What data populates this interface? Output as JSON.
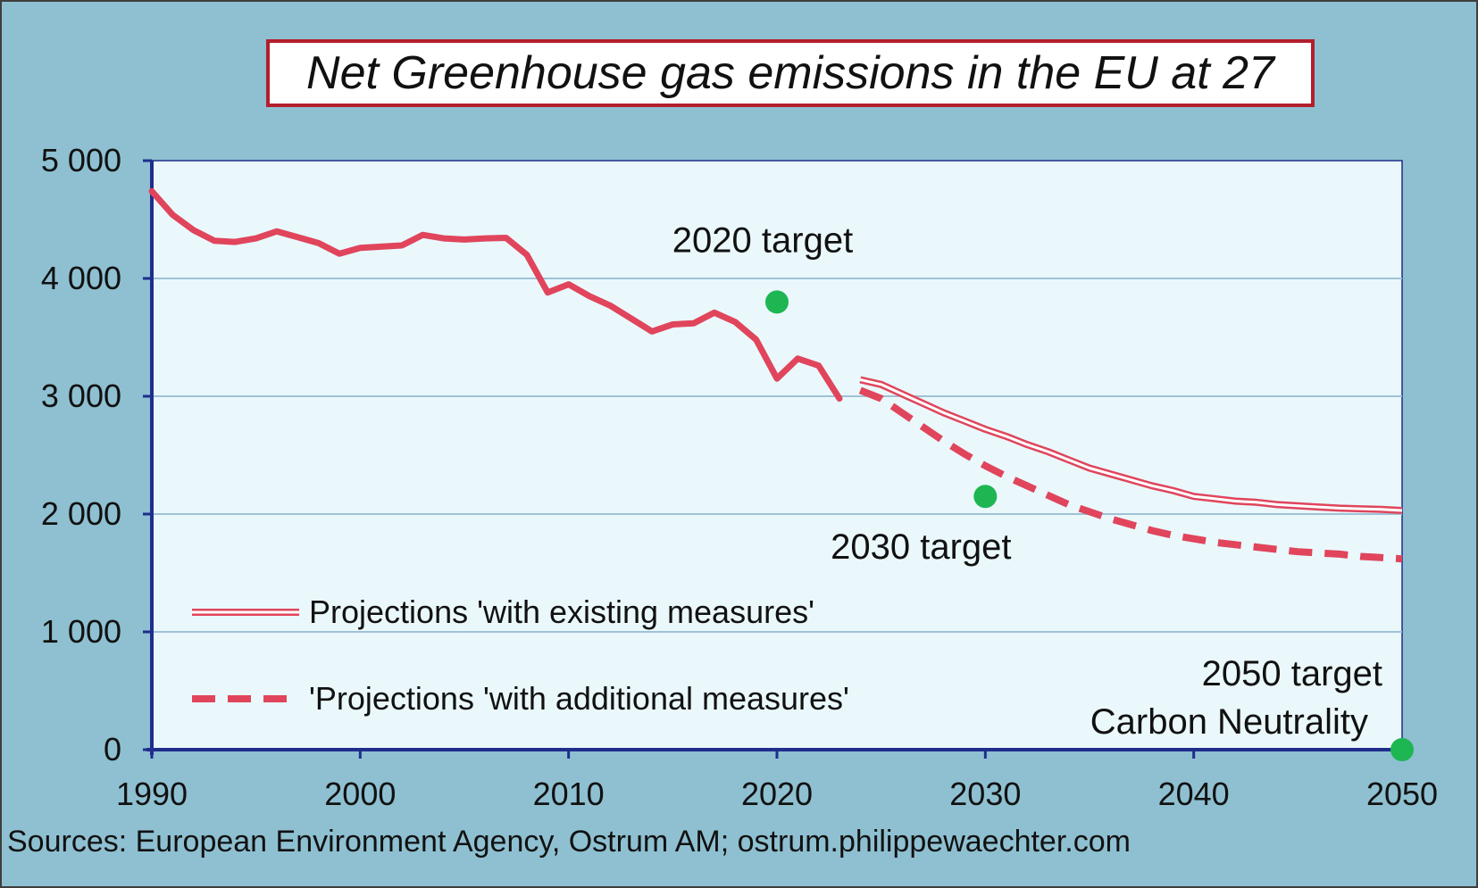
{
  "chart_data": {
    "type": "line",
    "title": "Net Greenhouse gas emissions in the EU at 27",
    "source": "Sources: European Environment Agency, Ostrum AM; ostrum.philippewaechter.com",
    "xlim": [
      1990,
      2050
    ],
    "ylim": [
      0,
      5000
    ],
    "x_ticks": [
      1990,
      2000,
      2010,
      2020,
      2030,
      2040,
      2050
    ],
    "x_tick_labels": [
      "1990",
      "2000",
      "2010",
      "2020",
      "2030",
      "2040",
      "2050"
    ],
    "y_ticks": [
      0,
      1000,
      2000,
      3000,
      4000,
      5000
    ],
    "y_tick_labels": [
      "0",
      "1 000",
      "2 000",
      "3 000",
      "4 000",
      "5 000"
    ],
    "grid": "horizontal",
    "legend_position": "bottom-left",
    "series": [
      {
        "style": "solid",
        "color": "#e0455c",
        "x": [
          1990,
          1991,
          1992,
          1993,
          1994,
          1995,
          1996,
          1997,
          1998,
          1999,
          2000,
          2001,
          2002,
          2003,
          2004,
          2005,
          2006,
          2007,
          2008,
          2009,
          2010,
          2011,
          2012,
          2013,
          2014,
          2015,
          2016,
          2017,
          2018,
          2019,
          2020,
          2021,
          2022,
          2023
        ],
        "values": [
          4740,
          4540,
          4410,
          4320,
          4310,
          4340,
          4400,
          4350,
          4300,
          4210,
          4260,
          4270,
          4280,
          4370,
          4340,
          4330,
          4340,
          4345,
          4200,
          3880,
          3950,
          3850,
          3770,
          3660,
          3550,
          3610,
          3620,
          3710,
          3630,
          3480,
          3150,
          3320,
          3260,
          2980
        ]
      },
      {
        "name": "Projections 'with existing measures'",
        "style": "double",
        "color": "#e0455c",
        "x": [
          2024,
          2025,
          2026,
          2027,
          2028,
          2029,
          2030,
          2031,
          2032,
          2033,
          2034,
          2035,
          2036,
          2037,
          2038,
          2039,
          2040,
          2041,
          2042,
          2043,
          2044,
          2045,
          2046,
          2047,
          2048,
          2049,
          2050
        ],
        "values": [
          3140,
          3100,
          3020,
          2940,
          2860,
          2790,
          2720,
          2660,
          2590,
          2530,
          2460,
          2390,
          2340,
          2290,
          2240,
          2200,
          2150,
          2130,
          2110,
          2100,
          2080,
          2070,
          2060,
          2050,
          2045,
          2040,
          2030
        ]
      },
      {
        "name": "'Projections 'with additional measures'",
        "style": "dashed",
        "color": "#e0455c",
        "x": [
          2024,
          2025,
          2026,
          2027,
          2028,
          2029,
          2030,
          2031,
          2032,
          2033,
          2034,
          2035,
          2036,
          2037,
          2038,
          2039,
          2040,
          2041,
          2042,
          2043,
          2044,
          2045,
          2046,
          2047,
          2048,
          2049,
          2050
        ],
        "values": [
          3050,
          2980,
          2860,
          2740,
          2620,
          2510,
          2410,
          2320,
          2240,
          2160,
          2080,
          2020,
          1960,
          1910,
          1860,
          1820,
          1790,
          1760,
          1740,
          1720,
          1700,
          1680,
          1670,
          1660,
          1640,
          1630,
          1620
        ]
      }
    ],
    "targets": [
      {
        "x": 2020,
        "y": 3800,
        "label": "2020 target"
      },
      {
        "x": 2030,
        "y": 2150,
        "label": "2030 target"
      },
      {
        "x": 2050,
        "y": 0,
        "label": "2050 target",
        "label2": "Carbon Neutrality"
      }
    ],
    "target_color": "#1db653",
    "legend": [
      {
        "label": "Projections 'with existing measures'",
        "style": "double"
      },
      {
        "label": "'Projections 'with additional measures'",
        "style": "dashed"
      }
    ],
    "colors": {
      "plot_bg": "#eaf8fc",
      "outer_bg": "#8ec0d1",
      "axis": "#1f2d8c",
      "grid": "#9fc2d6"
    }
  }
}
